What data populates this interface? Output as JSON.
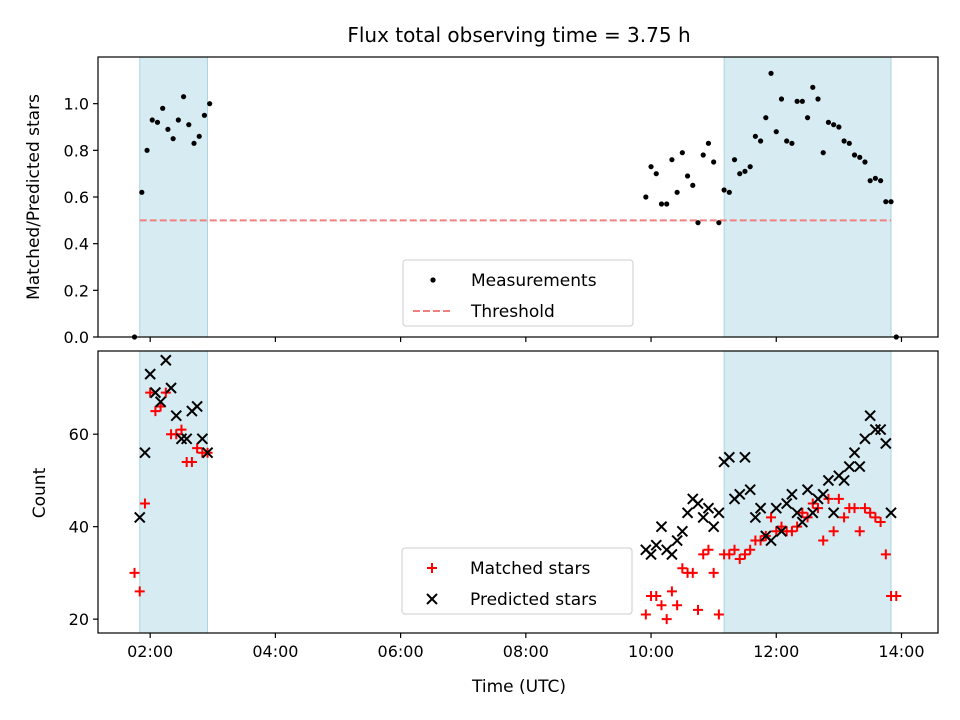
{
  "chart_data": [
    {
      "type": "scatter",
      "title": "Flux total observing time = 3.75 h",
      "xlabel": "",
      "ylabel": "Matched/Predicted stars",
      "xlim": [
        "01:10",
        "14:35"
      ],
      "ylim": [
        0,
        1.2
      ],
      "yticks": [
        "0.0",
        "0.2",
        "0.4",
        "0.6",
        "0.8",
        "1.0"
      ],
      "shaded_intervals": [
        [
          "01:50",
          "02:55"
        ],
        [
          "11:10",
          "13:50"
        ]
      ],
      "legend": {
        "placement": "lower-center",
        "entries": [
          {
            "label": "Measurements",
            "marker": "dot",
            "color": "#000000"
          },
          {
            "label": "Threshold",
            "marker": "dashed-line",
            "color": "#f08080"
          }
        ]
      },
      "threshold": {
        "x_start": "01:50",
        "x_end": "13:50",
        "y": 0.5
      },
      "series": [
        {
          "name": "Measurements",
          "points": [
            [
              "01:45",
              0.0
            ],
            [
              "01:52",
              0.62
            ],
            [
              "01:57",
              0.8
            ],
            [
              "02:02",
              0.93
            ],
            [
              "02:07",
              0.92
            ],
            [
              "02:12",
              0.98
            ],
            [
              "02:17",
              0.89
            ],
            [
              "02:22",
              0.85
            ],
            [
              "02:27",
              0.93
            ],
            [
              "02:32",
              1.03
            ],
            [
              "02:37",
              0.91
            ],
            [
              "02:42",
              0.83
            ],
            [
              "02:47",
              0.86
            ],
            [
              "02:52",
              0.95
            ],
            [
              "02:57",
              1.0
            ],
            [
              "09:55",
              0.6
            ],
            [
              "10:00",
              0.73
            ],
            [
              "10:05",
              0.7
            ],
            [
              "10:10",
              0.57
            ],
            [
              "10:15",
              0.57
            ],
            [
              "10:20",
              0.76
            ],
            [
              "10:25",
              0.62
            ],
            [
              "10:30",
              0.79
            ],
            [
              "10:35",
              0.69
            ],
            [
              "10:40",
              0.65
            ],
            [
              "10:45",
              0.49
            ],
            [
              "10:50",
              0.78
            ],
            [
              "10:55",
              0.83
            ],
            [
              "11:00",
              0.75
            ],
            [
              "11:05",
              0.49
            ],
            [
              "11:10",
              0.63
            ],
            [
              "11:15",
              0.62
            ],
            [
              "11:20",
              0.76
            ],
            [
              "11:25",
              0.7
            ],
            [
              "11:30",
              0.71
            ],
            [
              "11:35",
              0.73
            ],
            [
              "11:40",
              0.86
            ],
            [
              "11:45",
              0.84
            ],
            [
              "11:50",
              0.94
            ],
            [
              "11:55",
              1.13
            ],
            [
              "12:00",
              0.88
            ],
            [
              "12:05",
              1.02
            ],
            [
              "12:10",
              0.84
            ],
            [
              "12:15",
              0.83
            ],
            [
              "12:20",
              1.01
            ],
            [
              "12:25",
              1.01
            ],
            [
              "12:30",
              0.94
            ],
            [
              "12:35",
              1.07
            ],
            [
              "12:40",
              1.02
            ],
            [
              "12:45",
              0.79
            ],
            [
              "12:50",
              0.92
            ],
            [
              "12:55",
              0.91
            ],
            [
              "13:00",
              0.9
            ],
            [
              "13:05",
              0.84
            ],
            [
              "13:10",
              0.83
            ],
            [
              "13:15",
              0.78
            ],
            [
              "13:20",
              0.77
            ],
            [
              "13:25",
              0.75
            ],
            [
              "13:30",
              0.67
            ],
            [
              "13:35",
              0.68
            ],
            [
              "13:40",
              0.67
            ],
            [
              "13:45",
              0.58
            ],
            [
              "13:50",
              0.58
            ],
            [
              "13:55",
              0.0
            ]
          ]
        }
      ]
    },
    {
      "type": "scatter",
      "title": "",
      "xlabel": "Time (UTC)",
      "ylabel": "Count",
      "xlim": [
        "01:10",
        "14:35"
      ],
      "ylim": [
        17,
        78
      ],
      "yticks": [
        "20",
        "40",
        "60"
      ],
      "xticks": [
        "02:00",
        "04:00",
        "06:00",
        "08:00",
        "10:00",
        "12:00",
        "14:00"
      ],
      "shaded_intervals": [
        [
          "01:50",
          "02:55"
        ],
        [
          "11:10",
          "13:50"
        ]
      ],
      "legend": {
        "placement": "lower-center",
        "entries": [
          {
            "label": "Matched stars",
            "marker": "plus",
            "color": "#ff0000"
          },
          {
            "label": "Predicted stars",
            "marker": "x",
            "color": "#000000"
          }
        ]
      },
      "series": [
        {
          "name": "Matched stars",
          "points": [
            [
              "01:45",
              30
            ],
            [
              "01:50",
              26
            ],
            [
              "01:55",
              45
            ],
            [
              "02:00",
              69
            ],
            [
              "02:05",
              65
            ],
            [
              "02:10",
              66
            ],
            [
              "02:15",
              69
            ],
            [
              "02:20",
              60
            ],
            [
              "02:25",
              60
            ],
            [
              "02:30",
              61
            ],
            [
              "02:35",
              54
            ],
            [
              "02:40",
              54
            ],
            [
              "02:45",
              57
            ],
            [
              "02:50",
              56
            ],
            [
              "02:55",
              56
            ],
            [
              "09:55",
              21
            ],
            [
              "10:00",
              25
            ],
            [
              "10:05",
              25
            ],
            [
              "10:10",
              23
            ],
            [
              "10:15",
              20
            ],
            [
              "10:20",
              26
            ],
            [
              "10:25",
              23
            ],
            [
              "10:30",
              31
            ],
            [
              "10:35",
              30
            ],
            [
              "10:40",
              30
            ],
            [
              "10:45",
              22
            ],
            [
              "10:50",
              34
            ],
            [
              "10:55",
              35
            ],
            [
              "11:00",
              30
            ],
            [
              "11:05",
              21
            ],
            [
              "11:10",
              34
            ],
            [
              "11:15",
              34
            ],
            [
              "11:20",
              35
            ],
            [
              "11:25",
              33
            ],
            [
              "11:30",
              34
            ],
            [
              "11:35",
              35
            ],
            [
              "11:40",
              37
            ],
            [
              "11:45",
              37
            ],
            [
              "11:50",
              38
            ],
            [
              "11:55",
              42
            ],
            [
              "12:00",
              39
            ],
            [
              "12:05",
              40
            ],
            [
              "12:10",
              39
            ],
            [
              "12:15",
              39
            ],
            [
              "12:20",
              40
            ],
            [
              "12:25",
              43
            ],
            [
              "12:30",
              42
            ],
            [
              "12:35",
              45
            ],
            [
              "12:40",
              44
            ],
            [
              "12:45",
              37
            ],
            [
              "12:50",
              46
            ],
            [
              "12:55",
              39
            ],
            [
              "13:00",
              46
            ],
            [
              "13:05",
              42
            ],
            [
              "13:10",
              44
            ],
            [
              "13:15",
              44
            ],
            [
              "13:20",
              39
            ],
            [
              "13:25",
              44
            ],
            [
              "13:30",
              43
            ],
            [
              "13:35",
              42
            ],
            [
              "13:40",
              41
            ],
            [
              "13:45",
              34
            ],
            [
              "13:50",
              25
            ],
            [
              "13:55",
              25
            ]
          ]
        },
        {
          "name": "Predicted stars",
          "points": [
            [
              "01:50",
              42
            ],
            [
              "01:55",
              56
            ],
            [
              "02:00",
              73
            ],
            [
              "02:05",
              69
            ],
            [
              "02:10",
              67
            ],
            [
              "02:15",
              76
            ],
            [
              "02:20",
              70
            ],
            [
              "02:25",
              64
            ],
            [
              "02:30",
              59
            ],
            [
              "02:35",
              59
            ],
            [
              "02:40",
              65
            ],
            [
              "02:45",
              66
            ],
            [
              "02:50",
              59
            ],
            [
              "02:55",
              56
            ],
            [
              "09:55",
              35
            ],
            [
              "10:00",
              34
            ],
            [
              "10:05",
              36
            ],
            [
              "10:10",
              40
            ],
            [
              "10:15",
              35
            ],
            [
              "10:20",
              34
            ],
            [
              "10:25",
              37
            ],
            [
              "10:30",
              39
            ],
            [
              "10:35",
              43
            ],
            [
              "10:40",
              46
            ],
            [
              "10:45",
              45
            ],
            [
              "10:50",
              42
            ],
            [
              "10:55",
              44
            ],
            [
              "11:00",
              40
            ],
            [
              "11:05",
              43
            ],
            [
              "11:10",
              54
            ],
            [
              "11:15",
              55
            ],
            [
              "11:20",
              46
            ],
            [
              "11:25",
              47
            ],
            [
              "11:30",
              55
            ],
            [
              "11:35",
              48
            ],
            [
              "11:40",
              42
            ],
            [
              "11:45",
              44
            ],
            [
              "11:50",
              38
            ],
            [
              "11:55",
              37
            ],
            [
              "12:00",
              44
            ],
            [
              "12:05",
              39
            ],
            [
              "12:10",
              45
            ],
            [
              "12:15",
              47
            ],
            [
              "12:20",
              43
            ],
            [
              "12:25",
              41
            ],
            [
              "12:30",
              48
            ],
            [
              "12:35",
              43
            ],
            [
              "12:40",
              46
            ],
            [
              "12:45",
              47
            ],
            [
              "12:50",
              50
            ],
            [
              "12:55",
              43
            ],
            [
              "13:00",
              51
            ],
            [
              "13:05",
              50
            ],
            [
              "13:10",
              53
            ],
            [
              "13:15",
              56
            ],
            [
              "13:20",
              53
            ],
            [
              "13:25",
              59
            ],
            [
              "13:30",
              64
            ],
            [
              "13:35",
              61
            ],
            [
              "13:40",
              61
            ],
            [
              "13:45",
              58
            ],
            [
              "13:50",
              43
            ]
          ]
        }
      ]
    }
  ]
}
